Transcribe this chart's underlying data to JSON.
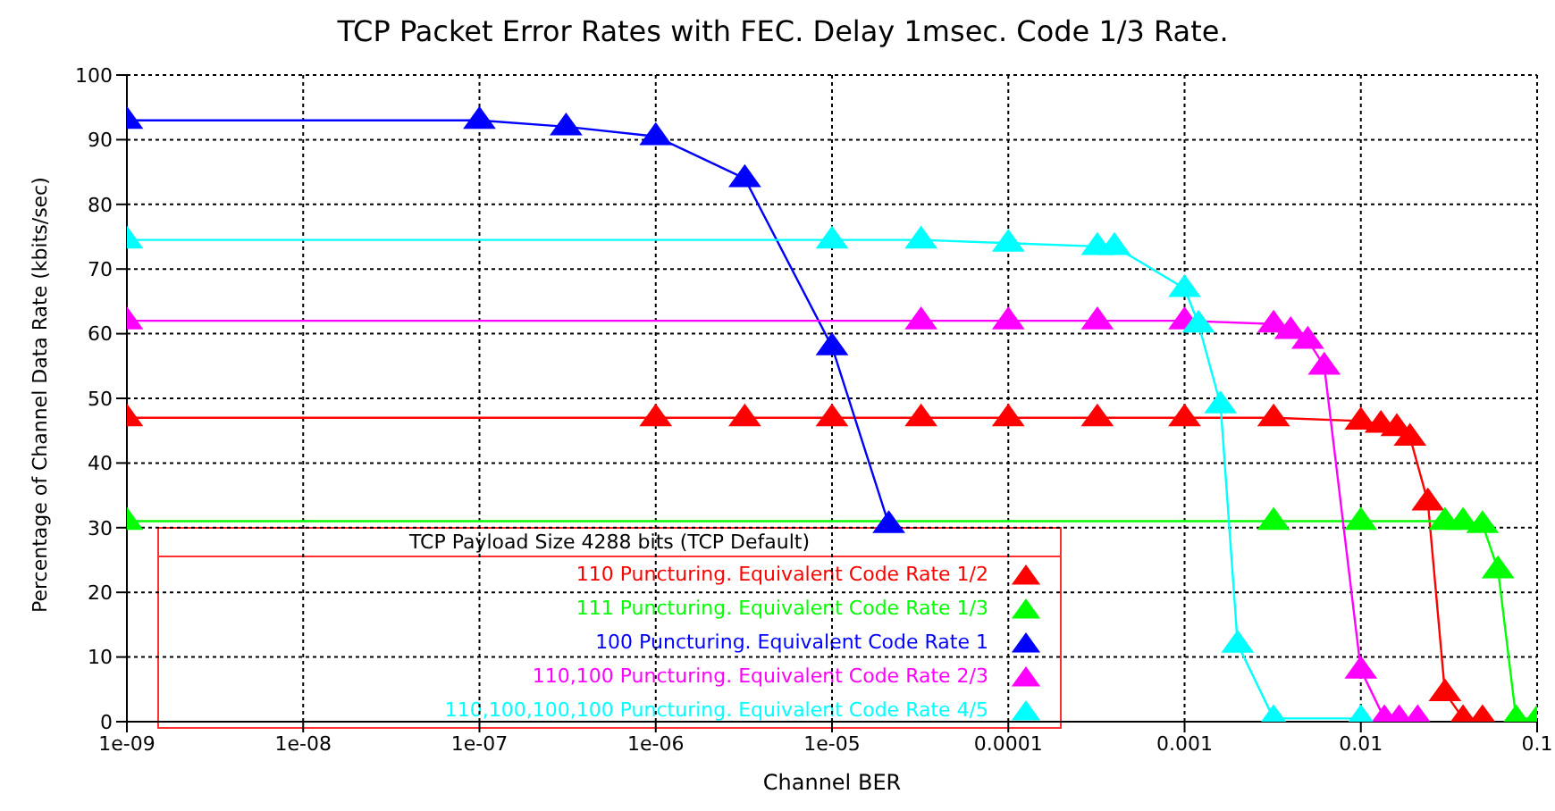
{
  "chart_data": {
    "type": "line",
    "title": "TCP Packet Error Rates with FEC. Delay 1msec. Code 1/3 Rate.",
    "xlabel": "Channel BER",
    "ylabel": "Percentage of Channel Data Rate (kbits/sec)",
    "legend_title": "TCP Payload Size 4288 bits (TCP Default)",
    "log": "x",
    "grid": true,
    "legend": "bottom left",
    "marker": "triangle",
    "line_style": "solid",
    "xlim": [
      1e-09,
      0.1
    ],
    "xticks": [
      {
        "value": 1e-09,
        "label": "1e-09"
      },
      {
        "value": 1e-08,
        "label": "1e-08"
      },
      {
        "value": 1e-07,
        "label": "1e-07"
      },
      {
        "value": 1e-06,
        "label": "1e-06"
      },
      {
        "value": 1e-05,
        "label": "1e-05"
      },
      {
        "value": 0.0001,
        "label": "0.0001"
      },
      {
        "value": 0.001,
        "label": "0.001"
      },
      {
        "value": 0.01,
        "label": "0.01"
      },
      {
        "value": 0.1,
        "label": "0.1"
      }
    ],
    "ylim": [
      0,
      100
    ],
    "yticks": [
      0,
      10,
      20,
      30,
      40,
      50,
      60,
      70,
      80,
      90,
      100
    ],
    "series": [
      {
        "name": "110 Puncturing. Equivalent Code Rate 1/2",
        "color": "#ff0000",
        "x": [
          1e-09,
          1e-06,
          3.2e-06,
          1e-05,
          3.2e-05,
          0.0001,
          0.00032,
          0.001,
          0.0032,
          0.01,
          0.013,
          0.016,
          0.019,
          0.024,
          0.03,
          0.038,
          0.049
        ],
        "values": [
          47,
          47,
          47,
          47,
          47,
          47,
          47,
          47,
          47,
          46.5,
          46,
          45.5,
          44,
          34,
          4.5,
          0.5,
          0.5
        ]
      },
      {
        "name": "111 Puncturing. Equivalent Code Rate 1/3",
        "color": "#00ff00",
        "x": [
          1e-09,
          0.0032,
          0.01,
          0.03,
          0.038,
          0.049,
          0.06,
          0.076,
          0.1
        ],
        "values": [
          31,
          31,
          31,
          31,
          31,
          30.5,
          23.5,
          0.5,
          0.5
        ]
      },
      {
        "name": "100 Puncturing. Equivalent Code Rate 1",
        "color": "#0000ff",
        "x": [
          1e-09,
          1e-07,
          3.1e-07,
          1e-06,
          3.2e-06,
          1e-05,
          2.1e-05
        ],
        "values": [
          93,
          93,
          92,
          90.5,
          84,
          58,
          30.5
        ]
      },
      {
        "name": "110,100 Puncturing. Equivalent Code Rate 2/3",
        "color": "#ff00ff",
        "x": [
          1e-09,
          3.2e-05,
          0.0001,
          0.00032,
          0.001,
          0.0032,
          0.004,
          0.005,
          0.0062,
          0.01,
          0.0136,
          0.0165,
          0.021
        ],
        "values": [
          62,
          62,
          62,
          62,
          62,
          61.5,
          60.5,
          59,
          55,
          8,
          0.5,
          0.5,
          0.5
        ]
      },
      {
        "name": "110,100,100,100 Puncturing. Equivalent Code Rate 4/5",
        "color": "#00ffff",
        "x": [
          1e-09,
          1e-05,
          3.2e-05,
          0.0001,
          0.00032,
          0.0004,
          0.001,
          0.0012,
          0.0016,
          0.002,
          0.0032,
          0.01
        ],
        "values": [
          74.5,
          74.5,
          74.5,
          74,
          73.5,
          73.5,
          67,
          61.5,
          49,
          12,
          0.5,
          0.5
        ]
      }
    ]
  }
}
